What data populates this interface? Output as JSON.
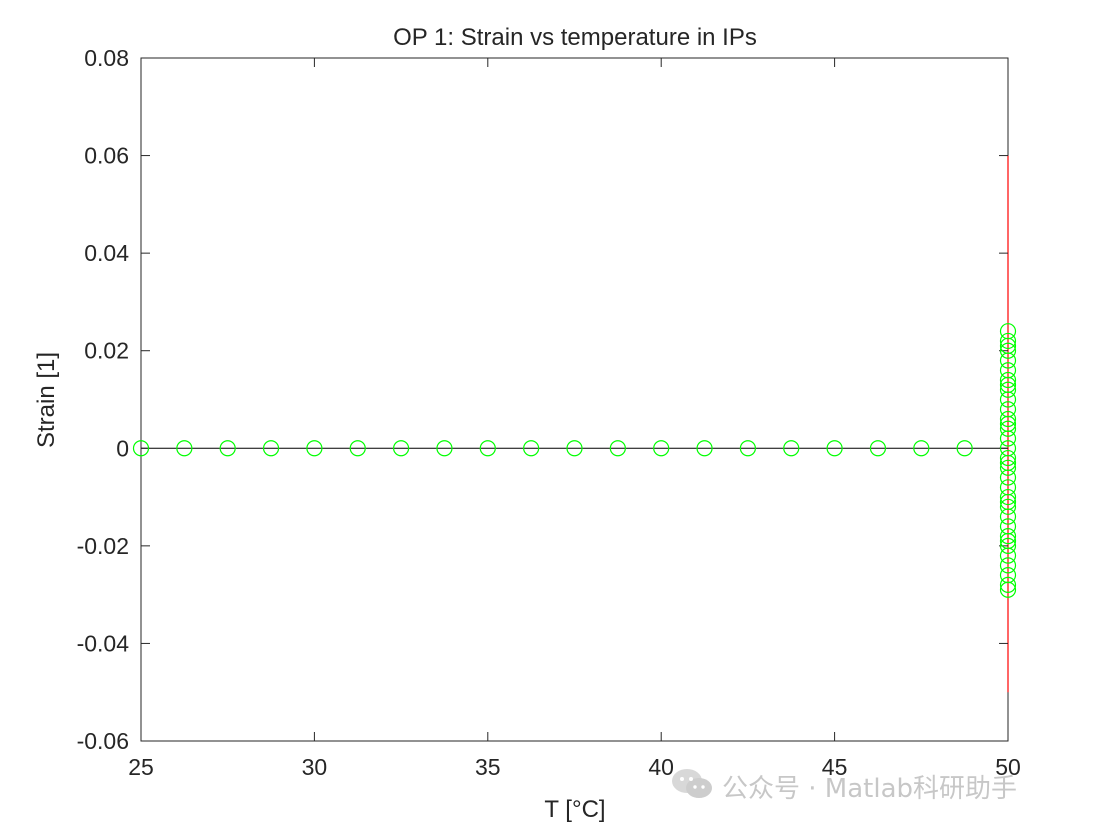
{
  "chart_data": {
    "type": "scatter",
    "title": "OP 1: Strain vs temperature in IPs",
    "xlabel": "T [°C]",
    "ylabel": "Strain [1]",
    "xlim": [
      25,
      50
    ],
    "ylim": [
      -0.06,
      0.08
    ],
    "xticks": [
      25,
      30,
      35,
      40,
      45,
      50
    ],
    "xtick_labels": [
      "25",
      "30",
      "35",
      "40",
      "45",
      "50"
    ],
    "yticks": [
      -0.06,
      -0.04,
      -0.02,
      0,
      0.02,
      0.04,
      0.06,
      0.08
    ],
    "ytick_labels": [
      "-0.06",
      "-0.04",
      "-0.02",
      "0",
      "0.02",
      "0.04",
      "0.06",
      "0.08"
    ],
    "grid": false,
    "zero_line": {
      "y": 0,
      "color": "#000000"
    },
    "limit_line": {
      "x": 50,
      "y_range": [
        -0.05,
        0.06
      ],
      "color": "#ff0000"
    },
    "series": [
      {
        "marker": "circle",
        "color": "#00ff00",
        "x": [
          25,
          26.25,
          27.5,
          28.75,
          30,
          31.25,
          32.5,
          33.75,
          35,
          36.25,
          37.5,
          38.75,
          40,
          41.25,
          42.5,
          43.75,
          45,
          46.25,
          47.5,
          48.75,
          50,
          50,
          50,
          50,
          50,
          50,
          50,
          50,
          50,
          50,
          50,
          50,
          50,
          50,
          50,
          50,
          50,
          50,
          50,
          50,
          50,
          50,
          50,
          50,
          50,
          50,
          50,
          50,
          50,
          50,
          50,
          50,
          50,
          50
        ],
        "y": [
          0,
          0,
          0,
          0,
          0,
          0,
          0,
          0,
          0,
          0,
          0,
          0,
          0,
          0,
          0,
          0,
          0,
          0,
          0,
          0,
          0.024,
          0.022,
          0.02,
          0.018,
          0.016,
          0.014,
          0.012,
          0.01,
          0.008,
          0.006,
          0.004,
          0.002,
          0.0,
          -0.002,
          -0.004,
          -0.006,
          -0.008,
          -0.01,
          -0.012,
          -0.014,
          -0.016,
          -0.018,
          -0.02,
          -0.022,
          -0.024,
          -0.026,
          -0.028,
          -0.029,
          0.021,
          0.013,
          0.005,
          -0.003,
          -0.011,
          -0.019
        ]
      }
    ]
  },
  "watermark": {
    "text": "公众号 · Matlab科研助手",
    "icon": "wechat-icon"
  }
}
